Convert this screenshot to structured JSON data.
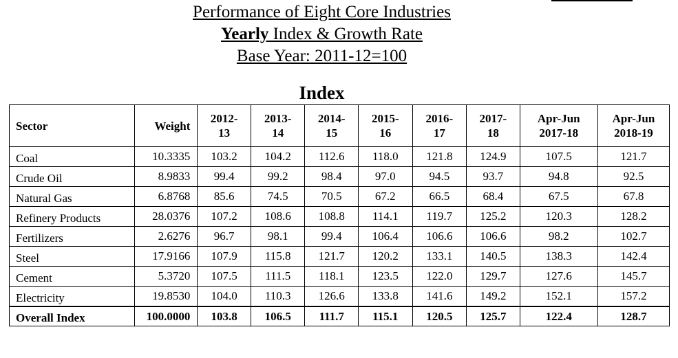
{
  "header": {
    "title_line1": "Performance of Eight Core Industries",
    "title_line2_bold": "Yearly",
    "title_line2_rest": " Index & Growth Rate",
    "title_line3": "Base Year: 2011-12=100"
  },
  "section_heading": "Index",
  "table": {
    "columns": [
      {
        "line1": "Sector",
        "line2": ""
      },
      {
        "line1": "Weight",
        "line2": ""
      },
      {
        "line1": "2012-",
        "line2": "13"
      },
      {
        "line1": "2013-",
        "line2": "14"
      },
      {
        "line1": "2014-",
        "line2": "15"
      },
      {
        "line1": "2015-",
        "line2": "16"
      },
      {
        "line1": "2016-",
        "line2": "17"
      },
      {
        "line1": "2017-",
        "line2": "18"
      },
      {
        "line1": "Apr-Jun",
        "line2": "2017-18"
      },
      {
        "line1": "Apr-Jun",
        "line2": "2018-19"
      }
    ],
    "rows": [
      [
        "Coal",
        "10.3335",
        "103.2",
        "104.2",
        "112.6",
        "118.0",
        "121.8",
        "124.9",
        "107.5",
        "121.7"
      ],
      [
        "Crude Oil",
        "8.9833",
        "99.4",
        "99.2",
        "98.4",
        "97.0",
        "94.5",
        "93.7",
        "94.8",
        "92.5"
      ],
      [
        "Natural Gas",
        "6.8768",
        "85.6",
        "74.5",
        "70.5",
        "67.2",
        "66.5",
        "68.4",
        "67.5",
        "67.8"
      ],
      [
        "Refinery Products",
        "28.0376",
        "107.2",
        "108.6",
        "108.8",
        "114.1",
        "119.7",
        "125.2",
        "120.3",
        "128.2"
      ],
      [
        "Fertilizers",
        "2.6276",
        "96.7",
        "98.1",
        "99.4",
        "106.4",
        "106.6",
        "106.6",
        "98.2",
        "102.7"
      ],
      [
        "Steel",
        "17.9166",
        "107.9",
        "115.8",
        "121.7",
        "120.2",
        "133.1",
        "140.5",
        "138.3",
        "142.4"
      ],
      [
        "Cement",
        "5.3720",
        "107.5",
        "111.5",
        "118.1",
        "123.5",
        "122.0",
        "129.7",
        "127.6",
        "145.7"
      ],
      [
        "Electricity",
        "19.8530",
        "104.0",
        "110.3",
        "126.6",
        "133.8",
        "141.6",
        "149.2",
        "152.1",
        "157.2"
      ]
    ],
    "overall": [
      "Overall Index",
      "100.0000",
      "103.8",
      "106.5",
      "111.7",
      "115.1",
      "120.5",
      "125.7",
      "122.4",
      "128.7"
    ]
  }
}
